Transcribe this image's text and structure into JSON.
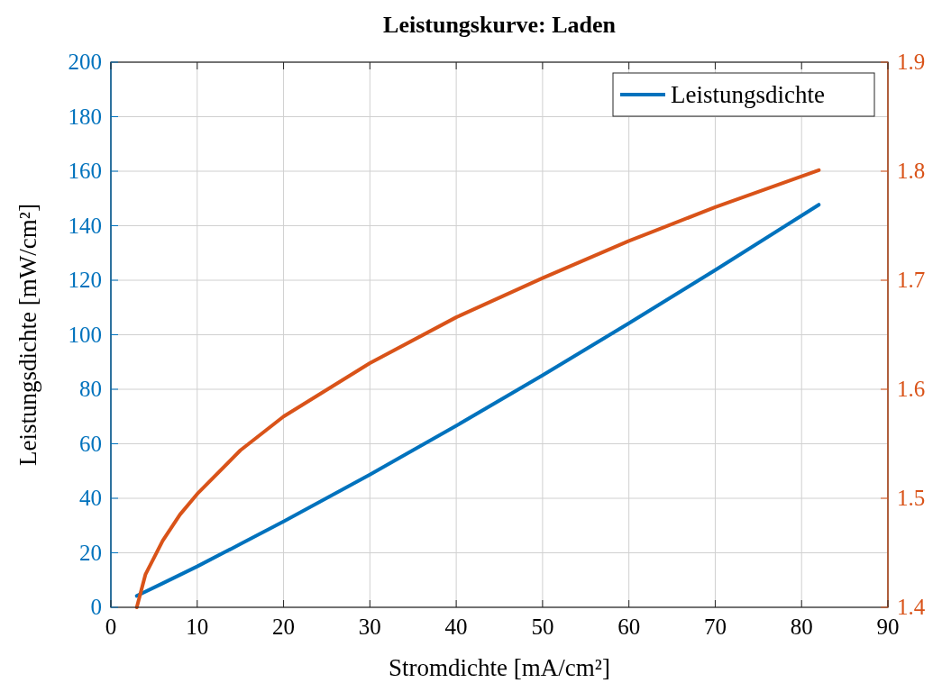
{
  "chart_data": {
    "type": "line",
    "title": "Leistungskurve: Laden",
    "xlabel": "Stromdichte [mA/cm²]",
    "ylabel": "Leistungsdichte [mW/cm²]",
    "xlim": [
      0,
      90
    ],
    "xticks": [
      0,
      10,
      20,
      30,
      40,
      50,
      60,
      70,
      80,
      90
    ],
    "ylim": [
      0,
      200
    ],
    "yticks": [
      0,
      20,
      40,
      60,
      80,
      100,
      120,
      140,
      160,
      180,
      200
    ],
    "y2lim": [
      1.4,
      1.9
    ],
    "y2ticks": [
      1.4,
      1.5,
      1.6,
      1.7,
      1.8,
      1.9
    ],
    "grid": true,
    "legend": "top right",
    "line_style": "solid",
    "marker": "none",
    "series": [
      {
        "name": "Leistungsdichte",
        "color": "#0072bd",
        "x": [
          3,
          6,
          10,
          15,
          20,
          30,
          40,
          50,
          60,
          70,
          82
        ],
        "values": [
          4.2,
          8.8,
          15.0,
          23.2,
          31.5,
          48.7,
          66.6,
          85.1,
          104.2,
          123.7,
          147.7
        ]
      },
      {
        "color": "#d95319",
        "axis": "y2",
        "x": [
          3,
          4,
          6,
          8,
          10,
          15,
          20,
          30,
          40,
          50,
          60,
          70,
          82
        ],
        "values": [
          1.4,
          1.43,
          1.461,
          1.485,
          1.504,
          1.544,
          1.575,
          1.624,
          1.666,
          1.702,
          1.736,
          1.767,
          1.801
        ]
      }
    ]
  }
}
